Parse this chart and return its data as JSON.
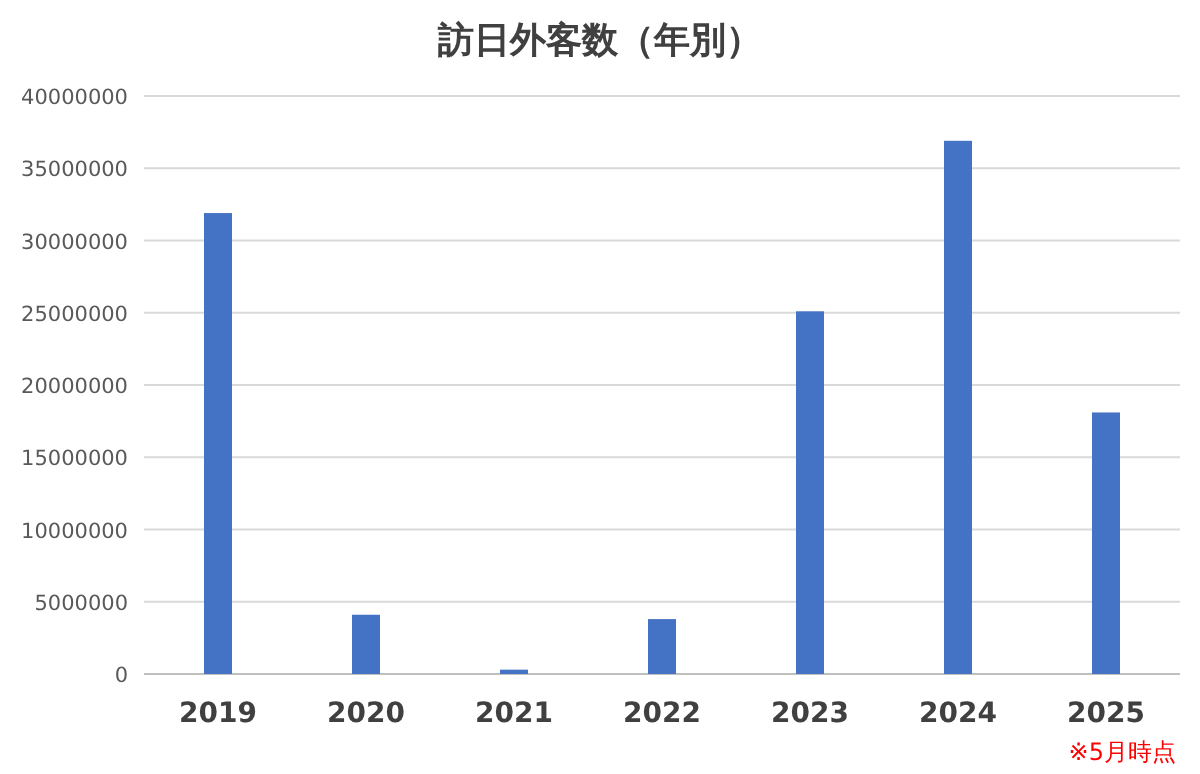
{
  "chart_data": {
    "type": "bar",
    "title": "訪日外客数（年別）",
    "categories": [
      "2019",
      "2020",
      "2021",
      "2022",
      "2023",
      "2024",
      "2025"
    ],
    "values": [
      31900000,
      4100000,
      300000,
      3800000,
      25100000,
      36900000,
      18100000
    ],
    "color": "#4472c4",
    "ylim": [
      0,
      40000000
    ],
    "yticks": [
      0,
      5000000,
      10000000,
      15000000,
      20000000,
      25000000,
      30000000,
      35000000,
      40000000
    ],
    "grid": "y",
    "annotations": [
      "※5月時点"
    ]
  }
}
